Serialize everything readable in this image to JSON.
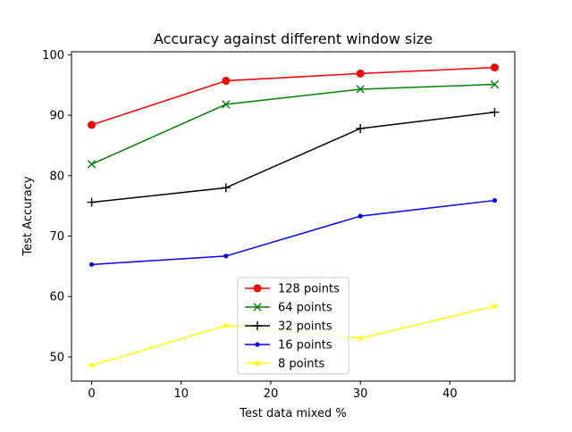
{
  "chart_data": {
    "type": "line",
    "title": "Accuracy against different window size",
    "xlabel": "Test data mixed %",
    "ylabel": "Test Accuracy",
    "xlim": [
      -2.25,
      47.25
    ],
    "ylim": [
      46.0,
      100.5
    ],
    "xticks": [
      0,
      10,
      20,
      30,
      40
    ],
    "yticks": [
      50,
      60,
      70,
      80,
      90,
      100
    ],
    "x": [
      0,
      15,
      30,
      45
    ],
    "legend_position": "lower-center",
    "grid": false,
    "series": [
      {
        "name": "128 points",
        "color": "#ff0000",
        "marker": "circle",
        "values": [
          88.4,
          95.7,
          96.9,
          97.9
        ]
      },
      {
        "name": "64 points",
        "color": "#008000",
        "marker": "x",
        "values": [
          81.9,
          91.8,
          94.3,
          95.1
        ]
      },
      {
        "name": "32 points",
        "color": "#000000",
        "marker": "plus",
        "values": [
          75.6,
          78.0,
          87.8,
          90.5
        ]
      },
      {
        "name": "16 points",
        "color": "#0000ff",
        "marker": "dot",
        "values": [
          65.3,
          66.7,
          73.3,
          75.9
        ]
      },
      {
        "name": "8 points",
        "color": "#ffff00",
        "marker": "star",
        "values": [
          48.6,
          55.2,
          53.1,
          58.4
        ]
      }
    ]
  }
}
